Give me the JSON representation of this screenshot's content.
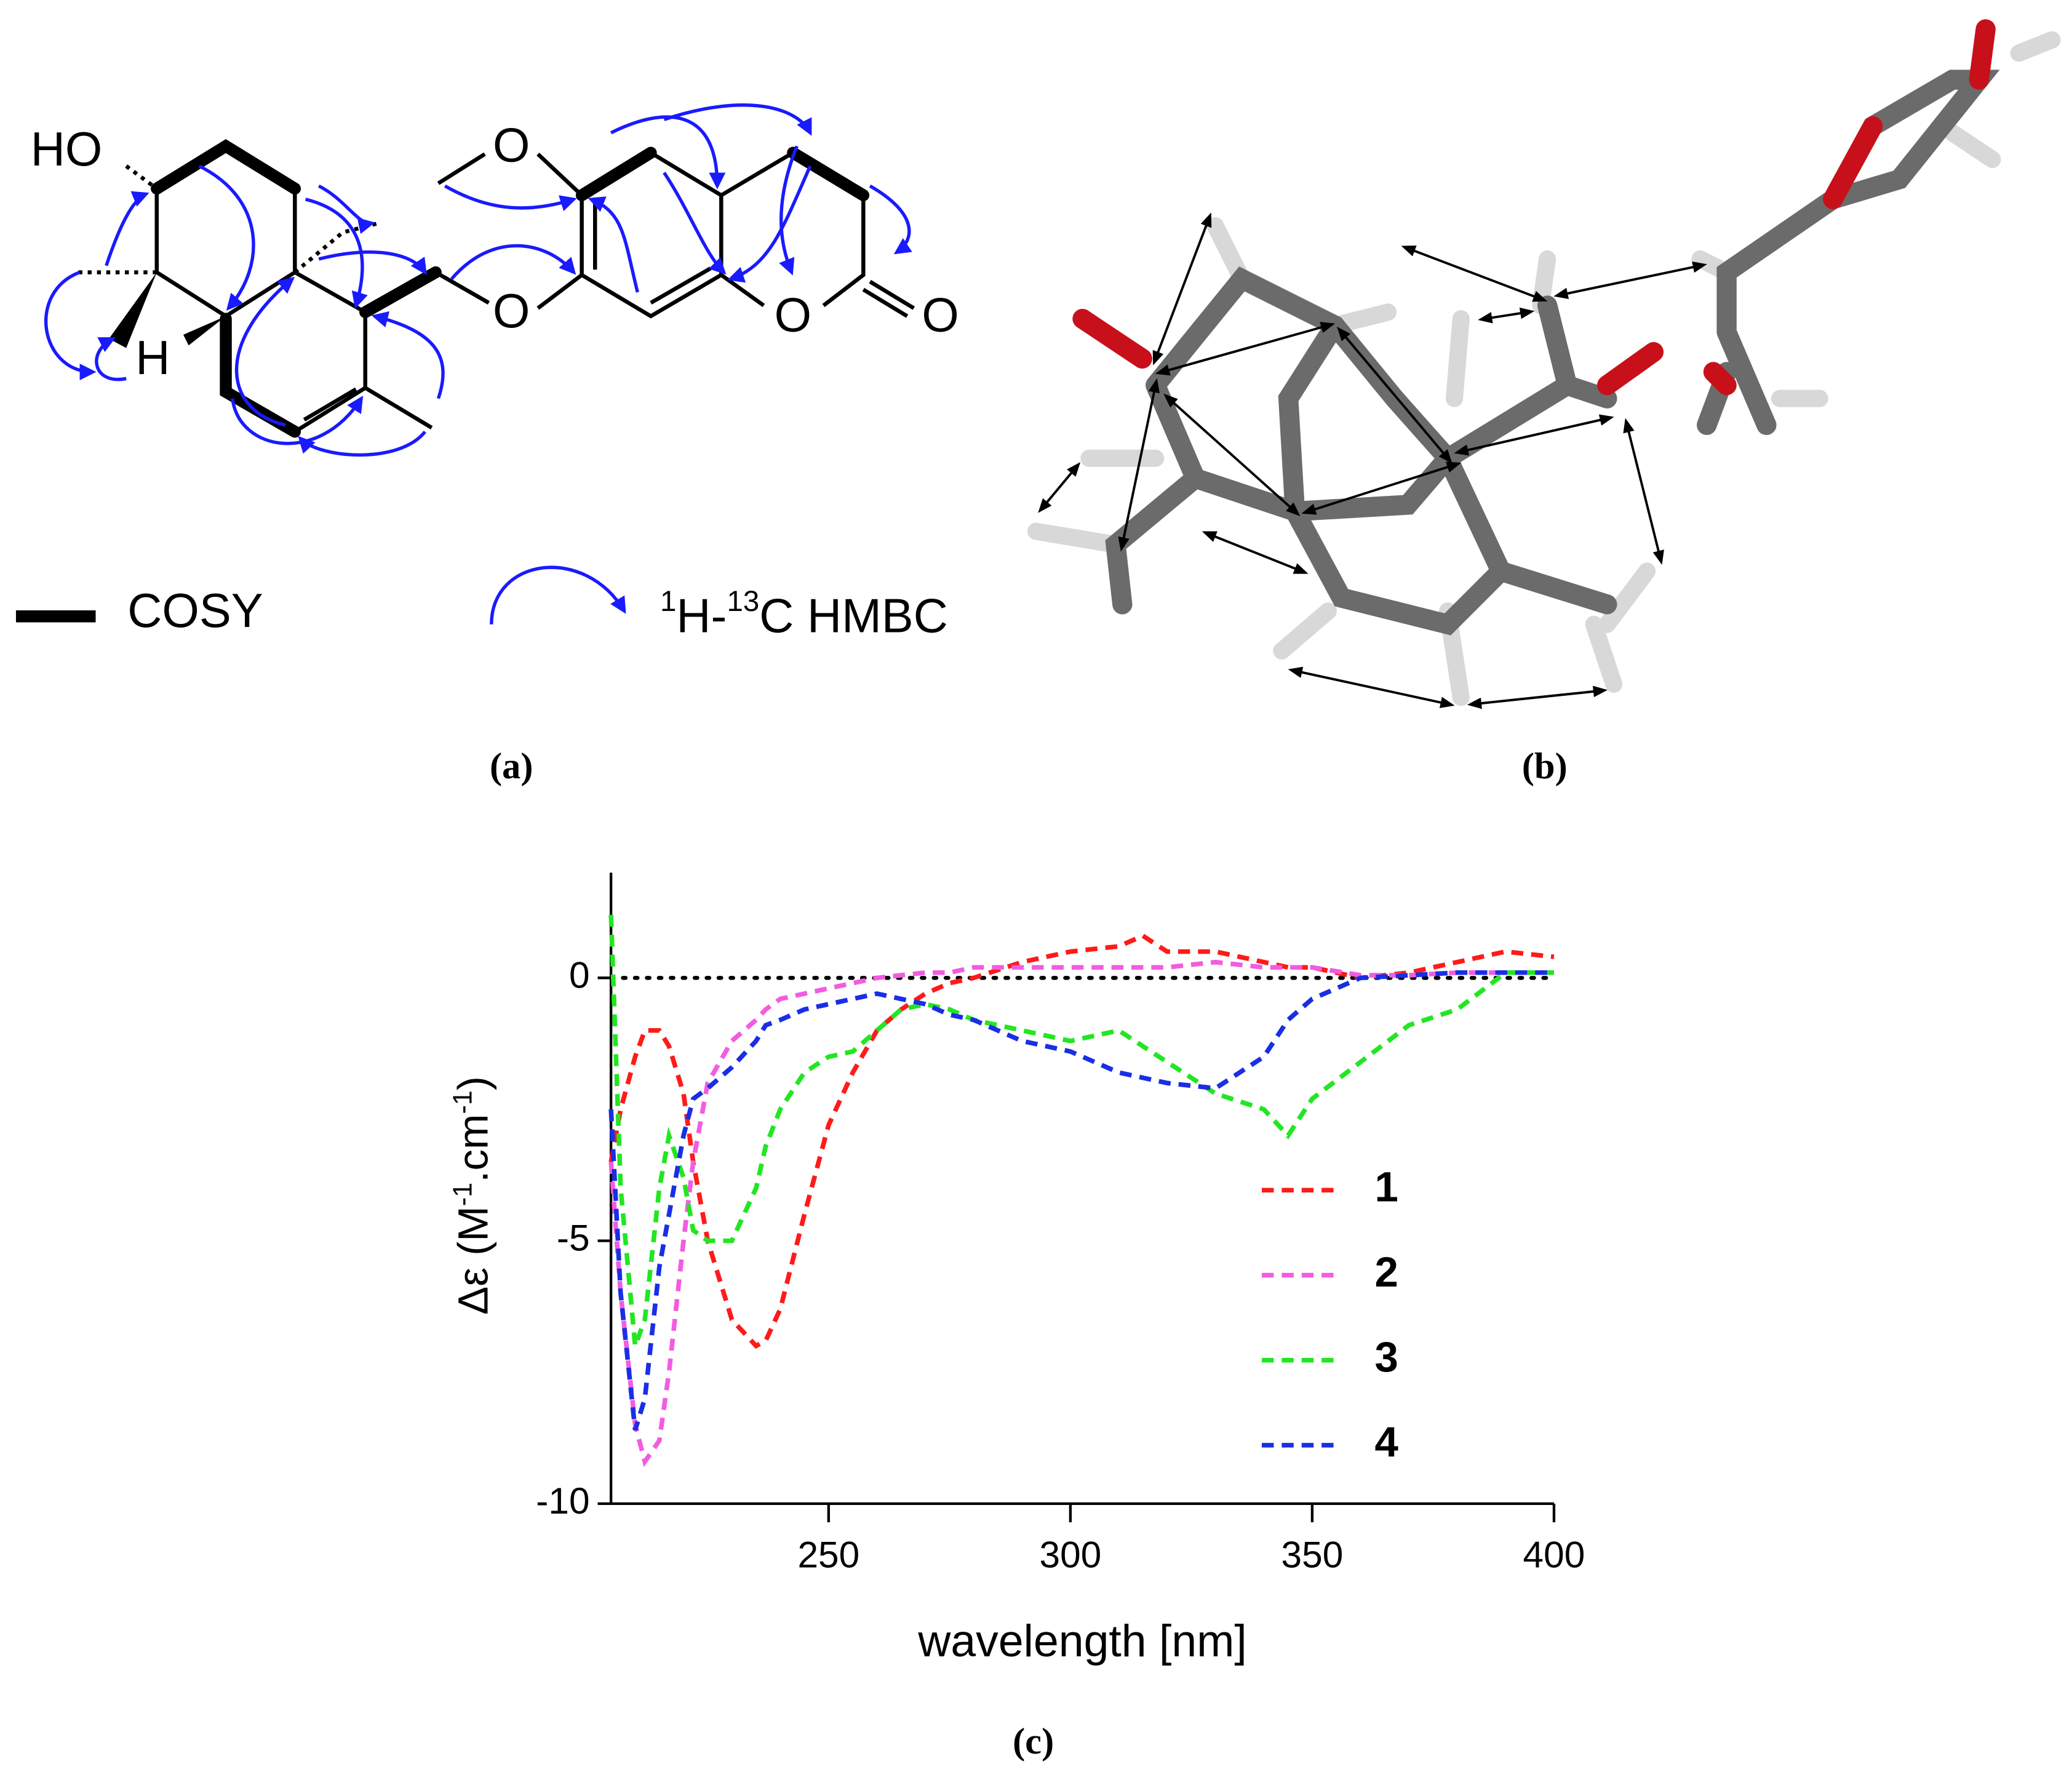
{
  "panel_a": {
    "label": "(a)",
    "atoms": [
      "HO",
      "H",
      "O",
      "O",
      "O",
      "O"
    ],
    "cosy_label": "COSY",
    "hmbc_label": [
      "1",
      "H-",
      "13",
      "C HMBC"
    ]
  },
  "panel_b": {
    "label": "(b)"
  },
  "chart_data": {
    "type": "line",
    "panel_label": "(c)",
    "xlabel": "wavelength [nm]",
    "ylabel": [
      "Δε (M",
      "-1",
      ".cm",
      "-1",
      ")"
    ],
    "x": [
      205,
      207,
      210,
      212,
      215,
      217,
      220,
      222,
      225,
      230,
      235,
      237,
      240,
      245,
      250,
      255,
      260,
      265,
      270,
      275,
      280,
      290,
      300,
      310,
      315,
      320,
      330,
      340,
      345,
      350,
      360,
      370,
      380,
      390,
      400
    ],
    "series": [
      {
        "name": "1",
        "color": "#ff1a1a",
        "values": [
          -3.5,
          -2.5,
          -1.5,
          -1.0,
          -1.0,
          -1.3,
          -2.2,
          -3.5,
          -5,
          -6.5,
          -7.0,
          -6.9,
          -6.3,
          -4.5,
          -2.8,
          -1.8,
          -1.0,
          -0.6,
          -0.3,
          -0.1,
          0,
          0.3,
          0.5,
          0.6,
          0.8,
          0.5,
          0.5,
          0.3,
          0.2,
          0.2,
          0.0,
          0.1,
          0.3,
          0.5,
          0.4
        ]
      },
      {
        "name": "2",
        "color": "#f25ce0",
        "values": [
          -3.5,
          -6,
          -8.5,
          -9.2,
          -8.8,
          -7.5,
          -5,
          -3.5,
          -2,
          -1.2,
          -0.8,
          -0.6,
          -0.4,
          -0.3,
          -0.2,
          -0.1,
          0,
          0.05,
          0.1,
          0.1,
          0.2,
          0.2,
          0.2,
          0.2,
          0.2,
          0.2,
          0.3,
          0.2,
          0.2,
          0.2,
          0.05,
          0.05,
          0.1,
          0.1,
          0.1
        ]
      },
      {
        "name": "3",
        "color": "#22e622",
        "values": [
          1.2,
          -4,
          -7,
          -6.5,
          -4,
          -3,
          -3.8,
          -4.8,
          -5,
          -5.0,
          -4,
          -3.2,
          -2.5,
          -1.8,
          -1.5,
          -1.4,
          -1.0,
          -0.6,
          -0.5,
          -0.6,
          -0.8,
          -1.0,
          -1.2,
          -1.0,
          -1.3,
          -1.6,
          -2.2,
          -2.5,
          -3.0,
          -2.3,
          -1.6,
          -0.9,
          -0.6,
          0.1,
          0.1
        ]
      },
      {
        "name": "4",
        "color": "#1a2ee6",
        "values": [
          -2.5,
          -6,
          -8.6,
          -8,
          -5.5,
          -4.5,
          -3,
          -2.3,
          -2.1,
          -1.7,
          -1.2,
          -0.9,
          -0.8,
          -0.6,
          -0.5,
          -0.4,
          -0.3,
          -0.4,
          -0.5,
          -0.7,
          -0.8,
          -1.2,
          -1.4,
          -1.8,
          -1.9,
          -2.0,
          -2.1,
          -1.5,
          -0.8,
          -0.4,
          0,
          0.05,
          0.1,
          0.1,
          0.1
        ]
      }
    ],
    "xlim": [
      205,
      400
    ],
    "ylim": [
      -10,
      2
    ],
    "xticks": [
      250,
      300,
      350,
      400
    ],
    "yticks": [
      -10,
      -5,
      0
    ],
    "hline": 0
  }
}
